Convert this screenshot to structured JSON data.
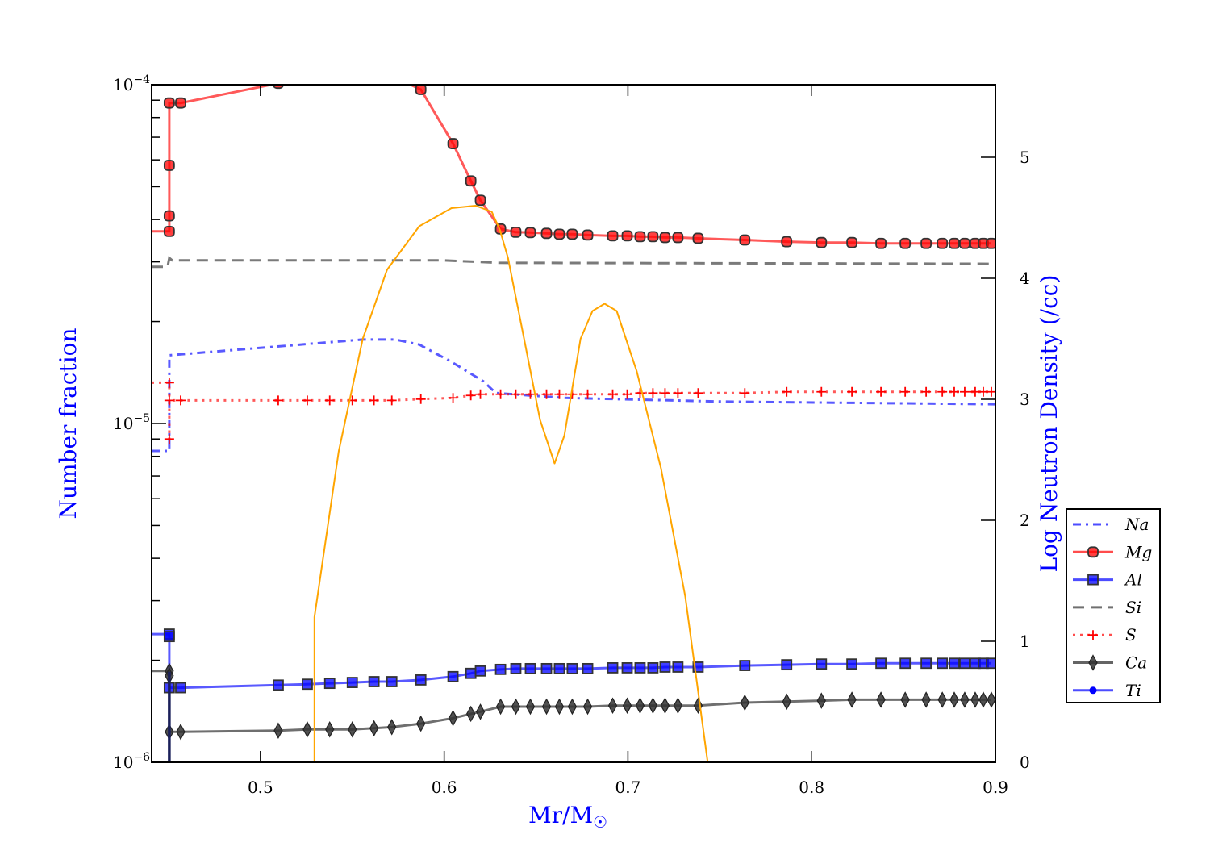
{
  "chart_data": {
    "type": "line",
    "title": "",
    "xlabel": "Mr/M",
    "xlabel_subscript": "☉",
    "ylabel": "Number fraction",
    "ylabel_right": "Log Neutron Density (/cc)",
    "xlim": [
      0.4408,
      0.9
    ],
    "ylim": [
      1e-06,
      0.0001
    ],
    "yscale": "log",
    "ylim_right": [
      0,
      5.6
    ],
    "xticks": [
      0.5,
      0.6,
      0.7,
      0.8,
      0.9
    ],
    "xtick_labels": [
      "0.5",
      "0.6",
      "0.7",
      "0.8",
      "0.9"
    ],
    "yticks": [
      {
        "base": "10",
        "exp": "−4",
        "value": 0.0001
      },
      {
        "base": "10",
        "exp": "−5",
        "value": 1e-05
      },
      {
        "base": "10",
        "exp": "−6",
        "value": 1e-06
      }
    ],
    "yticks_right": [
      0,
      1,
      2,
      3,
      4,
      5
    ],
    "ytick_labels_right": [
      "0",
      "1",
      "2",
      "3",
      "4",
      "5"
    ],
    "grid": false,
    "legend_placement": "right, outside lower",
    "series": [
      {
        "name": "Na",
        "color": "#0000ff",
        "style": "dashdot",
        "marker": "none",
        "x": [
          0.4408,
          0.4504,
          0.4504,
          0.5557,
          0.5733,
          0.5864,
          0.604,
          0.6215,
          0.6281,
          0.6654,
          0.7531,
          0.9
        ],
        "y": [
          8.3e-06,
          8.3e-06,
          1.59e-05,
          1.77e-05,
          1.77e-05,
          1.71e-05,
          1.52e-05,
          1.33e-05,
          1.23e-05,
          1.19e-05,
          1.16e-05,
          1.14e-05
        ]
      },
      {
        "name": "Mg",
        "color": "#ff0000",
        "style": "solid",
        "marker": "roundsquare",
        "x": [
          0.4408,
          0.4504,
          0.4504,
          0.4504,
          0.4504,
          0.4566,
          0.5097,
          0.5255,
          0.5377,
          0.55,
          0.5618,
          0.5715,
          0.5873,
          0.6048,
          0.6145,
          0.6197,
          0.6307,
          0.639,
          0.6469,
          0.6557,
          0.6627,
          0.6697,
          0.6781,
          0.6917,
          0.6996,
          0.7066,
          0.7136,
          0.7202,
          0.7272,
          0.7382,
          0.7636,
          0.7864,
          0.8053,
          0.8219,
          0.8377,
          0.8509,
          0.8623,
          0.8711,
          0.8776,
          0.8833,
          0.889,
          0.8934,
          0.8978
        ],
        "y": [
          3.69e-05,
          3.69e-05,
          4.1e-05,
          5.78e-05,
          8.83e-05,
          8.83e-05,
          0.000101,
          0.000105,
          0.000107,
          0.000108,
          0.000108,
          0.000106,
          9.68e-05,
          6.7e-05,
          5.2e-05,
          4.56e-05,
          3.75e-05,
          3.67e-05,
          3.66e-05,
          3.64e-05,
          3.62e-05,
          3.62e-05,
          3.6e-05,
          3.58e-05,
          3.58e-05,
          3.56e-05,
          3.56e-05,
          3.54e-05,
          3.54e-05,
          3.52e-05,
          3.48e-05,
          3.44e-05,
          3.42e-05,
          3.42e-05,
          3.4e-05,
          3.4e-05,
          3.4e-05,
          3.4e-05,
          3.4e-05,
          3.4e-05,
          3.4e-05,
          3.4e-05,
          3.4e-05
        ]
      },
      {
        "name": "Al",
        "color": "#0000ff",
        "style": "solid",
        "marker": "square",
        "x": [
          0.4408,
          0.4504,
          0.4504,
          0.4504,
          0.4566,
          0.5097,
          0.5255,
          0.5377,
          0.55,
          0.5618,
          0.5715,
          0.5873,
          0.6048,
          0.6145,
          0.6197,
          0.6307,
          0.639,
          0.6469,
          0.6557,
          0.6627,
          0.6697,
          0.6781,
          0.6917,
          0.6996,
          0.7066,
          0.7136,
          0.7202,
          0.7272,
          0.7382,
          0.7636,
          0.7864,
          0.8053,
          0.8219,
          0.8377,
          0.8509,
          0.8623,
          0.8711,
          0.8776,
          0.8833,
          0.889,
          0.8934,
          0.8978
        ],
        "y": [
          2.39e-06,
          2.39e-06,
          2.35e-06,
          1.66e-06,
          1.66e-06,
          1.69e-06,
          1.7e-06,
          1.71e-06,
          1.72e-06,
          1.73e-06,
          1.73e-06,
          1.75e-06,
          1.79e-06,
          1.83e-06,
          1.86e-06,
          1.88e-06,
          1.89e-06,
          1.89e-06,
          1.89e-06,
          1.89e-06,
          1.89e-06,
          1.89e-06,
          1.9e-06,
          1.9e-06,
          1.9e-06,
          1.9e-06,
          1.91e-06,
          1.91e-06,
          1.91e-06,
          1.93e-06,
          1.94e-06,
          1.95e-06,
          1.95e-06,
          1.96e-06,
          1.96e-06,
          1.96e-06,
          1.96e-06,
          1.96e-06,
          1.96e-06,
          1.96e-06,
          1.96e-06,
          1.96e-06
        ]
      },
      {
        "name": "Si",
        "color": "#333333",
        "style": "dashed",
        "marker": "none",
        "x": [
          0.4408,
          0.4495,
          0.4504,
          0.452,
          0.6,
          0.63,
          0.9
        ],
        "y": [
          2.9e-05,
          2.9e-05,
          3.08e-05,
          3.03e-05,
          3.03e-05,
          2.98e-05,
          2.96e-05
        ]
      },
      {
        "name": "S",
        "color": "#ff0000",
        "style": "dotted",
        "marker": "plus",
        "x": [
          0.4408,
          0.4504,
          0.4504,
          0.4504,
          0.4566,
          0.5097,
          0.5255,
          0.5377,
          0.55,
          0.5618,
          0.5715,
          0.5873,
          0.6048,
          0.6145,
          0.6197,
          0.6307,
          0.639,
          0.6469,
          0.6557,
          0.6627,
          0.6697,
          0.6781,
          0.6917,
          0.6996,
          0.7066,
          0.7136,
          0.7202,
          0.7272,
          0.7382,
          0.7636,
          0.7864,
          0.8053,
          0.8219,
          0.8377,
          0.8509,
          0.8623,
          0.8711,
          0.8776,
          0.8833,
          0.889,
          0.8934,
          0.8978
        ],
        "y": [
          1.32e-05,
          1.32e-05,
          9e-06,
          1.17e-05,
          1.17e-05,
          1.17e-05,
          1.17e-05,
          1.17e-05,
          1.17e-05,
          1.17e-05,
          1.17e-05,
          1.18e-05,
          1.19e-05,
          1.21e-05,
          1.22e-05,
          1.22e-05,
          1.22e-05,
          1.22e-05,
          1.22e-05,
          1.22e-05,
          1.22e-05,
          1.22e-05,
          1.22e-05,
          1.22e-05,
          1.23e-05,
          1.23e-05,
          1.23e-05,
          1.23e-05,
          1.23e-05,
          1.23e-05,
          1.24e-05,
          1.24e-05,
          1.24e-05,
          1.24e-05,
          1.24e-05,
          1.24e-05,
          1.24e-05,
          1.24e-05,
          1.24e-05,
          1.24e-05,
          1.24e-05,
          1.24e-05
        ]
      },
      {
        "name": "Ca",
        "color": "#222222",
        "style": "solid",
        "marker": "diamond",
        "x": [
          0.4408,
          0.4504,
          0.4504,
          0.4504,
          0.4566,
          0.5097,
          0.5255,
          0.5377,
          0.55,
          0.5618,
          0.5715,
          0.5873,
          0.6048,
          0.6145,
          0.6197,
          0.6307,
          0.639,
          0.6469,
          0.6557,
          0.6627,
          0.6697,
          0.6781,
          0.6917,
          0.6996,
          0.7066,
          0.7136,
          0.7202,
          0.7272,
          0.7382,
          0.7636,
          0.7864,
          0.8053,
          0.8219,
          0.8377,
          0.8509,
          0.8623,
          0.8711,
          0.8776,
          0.8833,
          0.889,
          0.8934,
          0.8978
        ],
        "y": [
          1.86e-06,
          1.86e-06,
          1.8e-06,
          1.23e-06,
          1.23e-06,
          1.24e-06,
          1.25e-06,
          1.25e-06,
          1.25e-06,
          1.26e-06,
          1.27e-06,
          1.3e-06,
          1.35e-06,
          1.39e-06,
          1.41e-06,
          1.46e-06,
          1.46e-06,
          1.46e-06,
          1.46e-06,
          1.46e-06,
          1.46e-06,
          1.46e-06,
          1.47e-06,
          1.47e-06,
          1.47e-06,
          1.47e-06,
          1.47e-06,
          1.47e-06,
          1.47e-06,
          1.5e-06,
          1.51e-06,
          1.52e-06,
          1.53e-06,
          1.53e-06,
          1.53e-06,
          1.53e-06,
          1.53e-06,
          1.53e-06,
          1.53e-06,
          1.53e-06,
          1.53e-06,
          1.53e-06
        ]
      },
      {
        "name": "Ti",
        "color": "#0000ff",
        "style": "solid",
        "marker": "circle",
        "x": [
          0.4504,
          0.4504
        ],
        "y": [
          1.85e-06,
          5e-07
        ]
      }
    ],
    "neutron_density": {
      "name": "Log Neutron Density",
      "color": "#ffa500",
      "axis": "right",
      "x": [
        0.5294,
        0.5294,
        0.5426,
        0.5557,
        0.5689,
        0.5864,
        0.604,
        0.6171,
        0.6259,
        0.6303,
        0.6347,
        0.6435,
        0.6522,
        0.6601,
        0.6654,
        0.6742,
        0.6807,
        0.6873,
        0.6939,
        0.7048,
        0.718,
        0.7312,
        0.7434
      ],
      "y": [
        0,
        1.2,
        2.57,
        3.5,
        4.07,
        4.43,
        4.58,
        4.6,
        4.55,
        4.4,
        4.17,
        3.5,
        2.83,
        2.47,
        2.7,
        3.5,
        3.73,
        3.79,
        3.73,
        3.23,
        2.43,
        1.37,
        0
      ]
    }
  }
}
